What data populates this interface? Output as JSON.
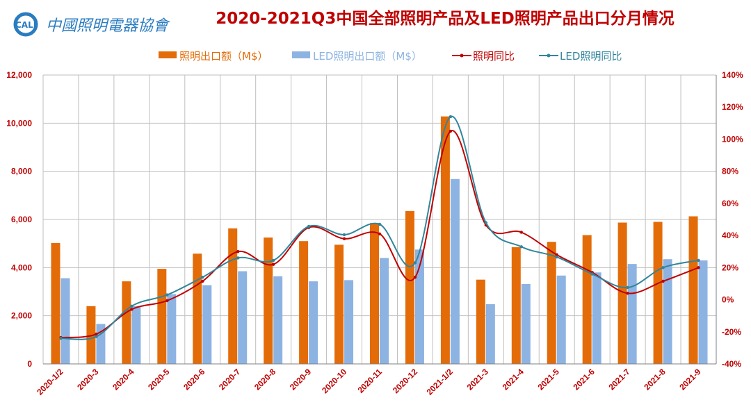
{
  "logo": {
    "text": "中國照明電器協會",
    "abbr": "CALI"
  },
  "chart_data": {
    "type": "bar",
    "title": "2020-2021Q3中国全部照明产品及LED照明产品出口分月情况",
    "categories": [
      "2020-1/2",
      "2020-3",
      "2020-4",
      "2020-5",
      "2020-6",
      "2020-7",
      "2020-8",
      "2020-9",
      "2020-10",
      "2020-11",
      "2020-12",
      "2021-1/2",
      "2021-3",
      "2021-4",
      "2021-5",
      "2021-6",
      "2021-7",
      "2021-8",
      "2021-9"
    ],
    "series": [
      {
        "name": "照明出口额（M$）",
        "kind": "bar",
        "axis": "left",
        "color": "#e36c09",
        "values": [
          5020,
          2400,
          3430,
          3950,
          4580,
          5630,
          5250,
          5100,
          4950,
          5850,
          6350,
          10280,
          3500,
          4850,
          5070,
          5350,
          5870,
          5900,
          6130
        ]
      },
      {
        "name": "LED照明出口额（M$）",
        "kind": "bar",
        "axis": "left",
        "color": "#8db3e2",
        "values": [
          3560,
          1660,
          2400,
          2900,
          3270,
          3850,
          3640,
          3430,
          3480,
          4400,
          4750,
          7680,
          2480,
          3320,
          3670,
          3800,
          4150,
          4350,
          4300
        ]
      },
      {
        "name": "照明同比",
        "kind": "line",
        "axis": "right",
        "color": "#c00000",
        "values": [
          -23.6,
          -21.4,
          -6,
          -0.6,
          11.5,
          30,
          22,
          45,
          38,
          41,
          14,
          105,
          46.5,
          42,
          28,
          17,
          4,
          11.5,
          20
        ]
      },
      {
        "name": "LED照明同比",
        "kind": "line",
        "axis": "right",
        "color": "#31859c",
        "values": [
          -24,
          -23,
          -4,
          3,
          14,
          26,
          24.5,
          45.7,
          40.5,
          47,
          23,
          114,
          48,
          33,
          26.6,
          16,
          7.6,
          20,
          24.5
        ]
      }
    ],
    "ylim": [
      0,
      12000
    ],
    "y_ticks": [
      "0",
      "2,000",
      "4,000",
      "6,000",
      "8,000",
      "10,000",
      "12,000"
    ],
    "y2lim": [
      -40,
      140
    ],
    "y2_ticks": [
      "-40%",
      "-20%",
      "0%",
      "20%",
      "40%",
      "60%",
      "80%",
      "100%",
      "120%",
      "140%"
    ],
    "grid": true,
    "legend": "top"
  }
}
